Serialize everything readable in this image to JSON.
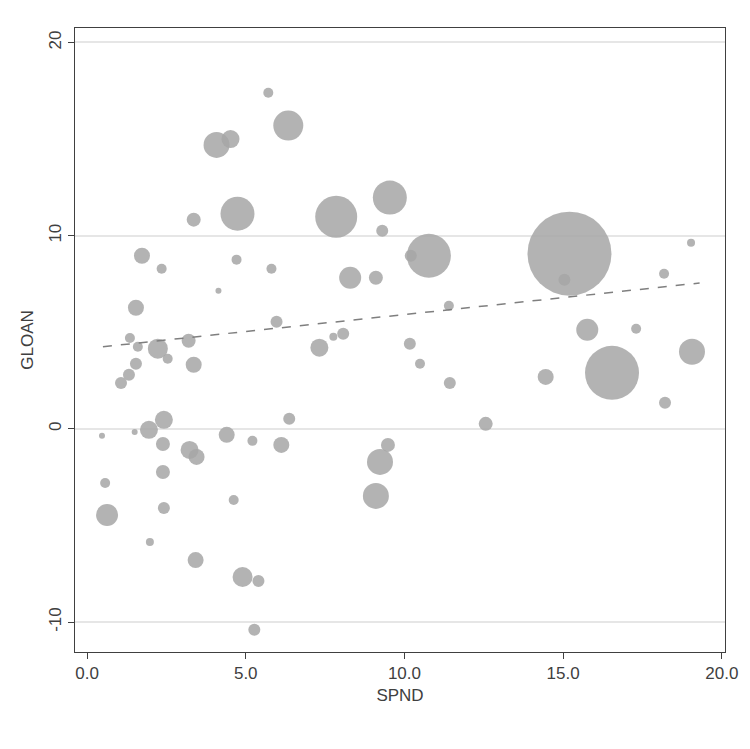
{
  "chart_data": {
    "type": "scatter",
    "marker": "bubble",
    "x_label": "SPND",
    "y_label": "GLOAN",
    "color": "#a6a6a6",
    "grid": "y",
    "xlim": [
      -0.38,
      20.1
    ],
    "ylim": [
      -11.55,
      20.75
    ],
    "xticks": [
      {
        "value": 0,
        "label": "0.0"
      },
      {
        "value": 5,
        "label": "5.0"
      },
      {
        "value": 10,
        "label": "10.0"
      },
      {
        "value": 15,
        "label": "15.0"
      },
      {
        "value": 20,
        "label": "20.0"
      }
    ],
    "yticks": [
      -10,
      0,
      10,
      20
    ],
    "x": [
      0.47,
      0.57,
      0.63,
      1.07,
      1.32,
      1.35,
      1.5,
      1.54,
      1.54,
      1.6,
      1.73,
      1.95,
      1.98,
      2.23,
      2.35,
      2.39,
      2.39,
      2.42,
      2.42,
      2.54,
      3.2,
      3.23,
      3.36,
      3.36,
      3.45,
      3.42,
      4.08,
      4.14,
      4.4,
      4.52,
      4.62,
      4.71,
      4.74,
      4.9,
      5.21,
      5.27,
      5.4,
      5.71,
      5.81,
      5.97,
      6.12,
      6.34,
      6.37,
      7.32,
      7.85,
      7.76,
      8.07,
      8.29,
      9.1,
      9.1,
      9.23,
      9.3,
      9.54,
      9.48,
      10.17,
      10.2,
      10.49,
      10.77,
      11.4,
      11.43,
      12.56,
      14.45,
      15.04,
      15.2,
      15.76,
      16.54,
      17.3,
      18.18,
      18.21,
      19.03,
      19.06
    ],
    "values": [
      -0.36,
      -2.8,
      -4.46,
      2.38,
      2.8,
      4.7,
      -0.16,
      3.37,
      6.27,
      4.25,
      8.96,
      -0.05,
      -5.85,
      4.15,
      8.29,
      -0.78,
      -2.23,
      0.47,
      -4.1,
      3.63,
      4.56,
      -1.09,
      10.83,
      3.32,
      -1.45,
      -6.79,
      14.7,
      7.15,
      -0.31,
      15.0,
      -3.68,
      8.76,
      11.14,
      -7.67,
      -0.62,
      -10.4,
      -7.88,
      17.4,
      8.29,
      5.54,
      -0.83,
      15.7,
      0.52,
      4.2,
      10.98,
      4.77,
      4.92,
      7.82,
      -3.47,
      7.82,
      -1.71,
      10.26,
      11.97,
      -0.83,
      4.4,
      8.96,
      3.37,
      8.96,
      6.37,
      2.38,
      0.26,
      2.69,
      7.72,
      9.07,
      5.13,
      2.9,
      5.18,
      8.03,
      1.35,
      9.64,
      3.99
    ],
    "size": [
      3,
      5,
      11,
      6,
      6,
      5,
      3,
      6,
      8,
      5,
      8,
      9,
      4,
      10,
      5,
      7,
      7,
      9,
      6,
      5,
      7,
      9,
      7,
      8,
      8,
      8,
      13,
      3,
      8,
      9,
      5,
      5,
      17,
      10,
      5,
      6,
      6,
      5,
      5,
      6,
      8,
      15,
      6,
      9,
      21,
      4,
      6,
      11,
      13,
      7,
      13,
      6,
      17,
      7,
      6,
      6,
      5,
      22,
      5,
      6,
      7,
      8,
      6,
      42,
      11,
      27,
      5,
      5,
      6,
      4,
      13
    ],
    "fit": {
      "x": [
        0.5,
        19.3
      ],
      "values": [
        4.25,
        7.55
      ],
      "color": "#7f7f7f",
      "line_style": "dash"
    }
  }
}
